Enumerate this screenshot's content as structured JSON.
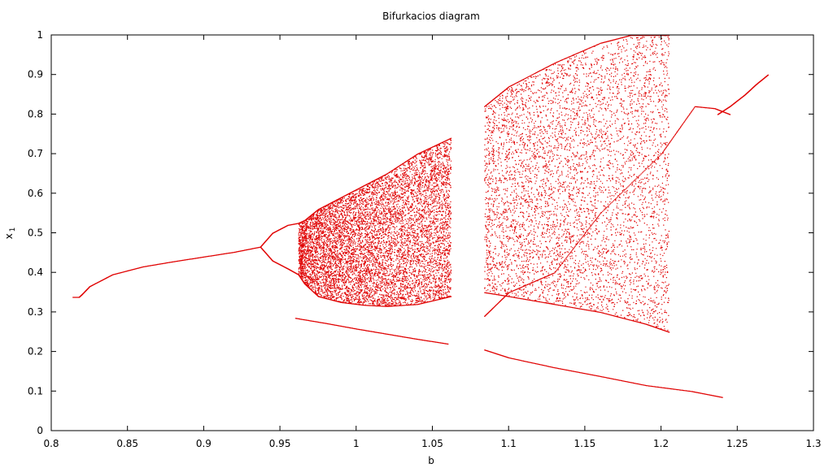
{
  "chart_data": {
    "type": "scatter",
    "title": "Bifurkacios diagram",
    "xlabel": "b",
    "ylabel": "x",
    "ylabel_subscript": "1",
    "xlim": [
      0.8,
      1.3
    ],
    "ylim": [
      0,
      1
    ],
    "xticks": [
      0.8,
      0.85,
      0.9,
      0.95,
      1,
      1.05,
      1.1,
      1.15,
      1.2,
      1.25,
      1.3
    ],
    "xtick_labels": [
      "0.8",
      "0.85",
      "0.9",
      "0.95",
      "1",
      "1.05",
      "1.1",
      "1.15",
      "1.2",
      "1.25",
      "1.3"
    ],
    "yticks": [
      0,
      0.1,
      0.2,
      0.3,
      0.4,
      0.5,
      0.6,
      0.7,
      0.8,
      0.9,
      1
    ],
    "ytick_labels": [
      "0",
      "0.1",
      "0.2",
      "0.3",
      "0.4",
      "0.5",
      "0.6",
      "0.7",
      "0.8",
      "0.9",
      "1"
    ],
    "grid": false,
    "legend": "none",
    "point_color": "#e00000",
    "series": [
      {
        "x": [
          0.814,
          0.818,
          0.82,
          0.825,
          0.84,
          0.86,
          0.88,
          0.9,
          0.92,
          0.937
        ],
        "y": [
          0.338,
          0.338,
          0.345,
          0.365,
          0.395,
          0.415,
          0.428,
          0.44,
          0.452,
          0.465
        ]
      },
      {
        "x": [
          0.937,
          0.945,
          0.955,
          0.962,
          0.966,
          0.975,
          0.99,
          1.005,
          1.02,
          1.04,
          1.062
        ],
        "y": [
          0.465,
          0.5,
          0.52,
          0.525,
          0.532,
          0.56,
          0.59,
          0.62,
          0.65,
          0.7,
          0.74
        ]
      },
      {
        "x": [
          0.937,
          0.945,
          0.955,
          0.962,
          0.966,
          0.975,
          0.99,
          1.005,
          1.02,
          1.04,
          1.062
        ],
        "y": [
          0.465,
          0.43,
          0.41,
          0.395,
          0.372,
          0.34,
          0.325,
          0.318,
          0.315,
          0.32,
          0.34
        ]
      },
      {
        "x": [
          0.96,
          0.98,
          1.0,
          1.02,
          1.04,
          1.06
        ],
        "y": [
          0.285,
          0.272,
          0.258,
          0.245,
          0.232,
          0.22
        ]
      },
      {
        "x": [
          1.084,
          1.1,
          1.13,
          1.16,
          1.19,
          1.22,
          1.24
        ],
        "y": [
          0.205,
          0.185,
          0.16,
          0.138,
          0.115,
          0.1,
          0.085
        ]
      },
      {
        "x": [
          1.084,
          1.1,
          1.13,
          1.16,
          1.2,
          1.222,
          1.235,
          1.245
        ],
        "y": [
          0.29,
          0.35,
          0.4,
          0.55,
          0.7,
          0.82,
          0.815,
          0.8
        ]
      },
      {
        "x": [
          1.084,
          1.1,
          1.13,
          1.16,
          1.18,
          1.205
        ],
        "y": [
          0.82,
          0.87,
          0.93,
          0.98,
          1.0,
          1.0
        ]
      },
      {
        "x": [
          1.084,
          1.1,
          1.13,
          1.16,
          1.19,
          1.205
        ],
        "y": [
          0.35,
          0.34,
          0.32,
          0.3,
          0.27,
          0.25
        ]
      },
      {
        "x": [
          1.237,
          1.245,
          1.255,
          1.262,
          1.27
        ],
        "y": [
          0.8,
          0.82,
          0.85,
          0.875,
          0.9
        ]
      }
    ]
  }
}
